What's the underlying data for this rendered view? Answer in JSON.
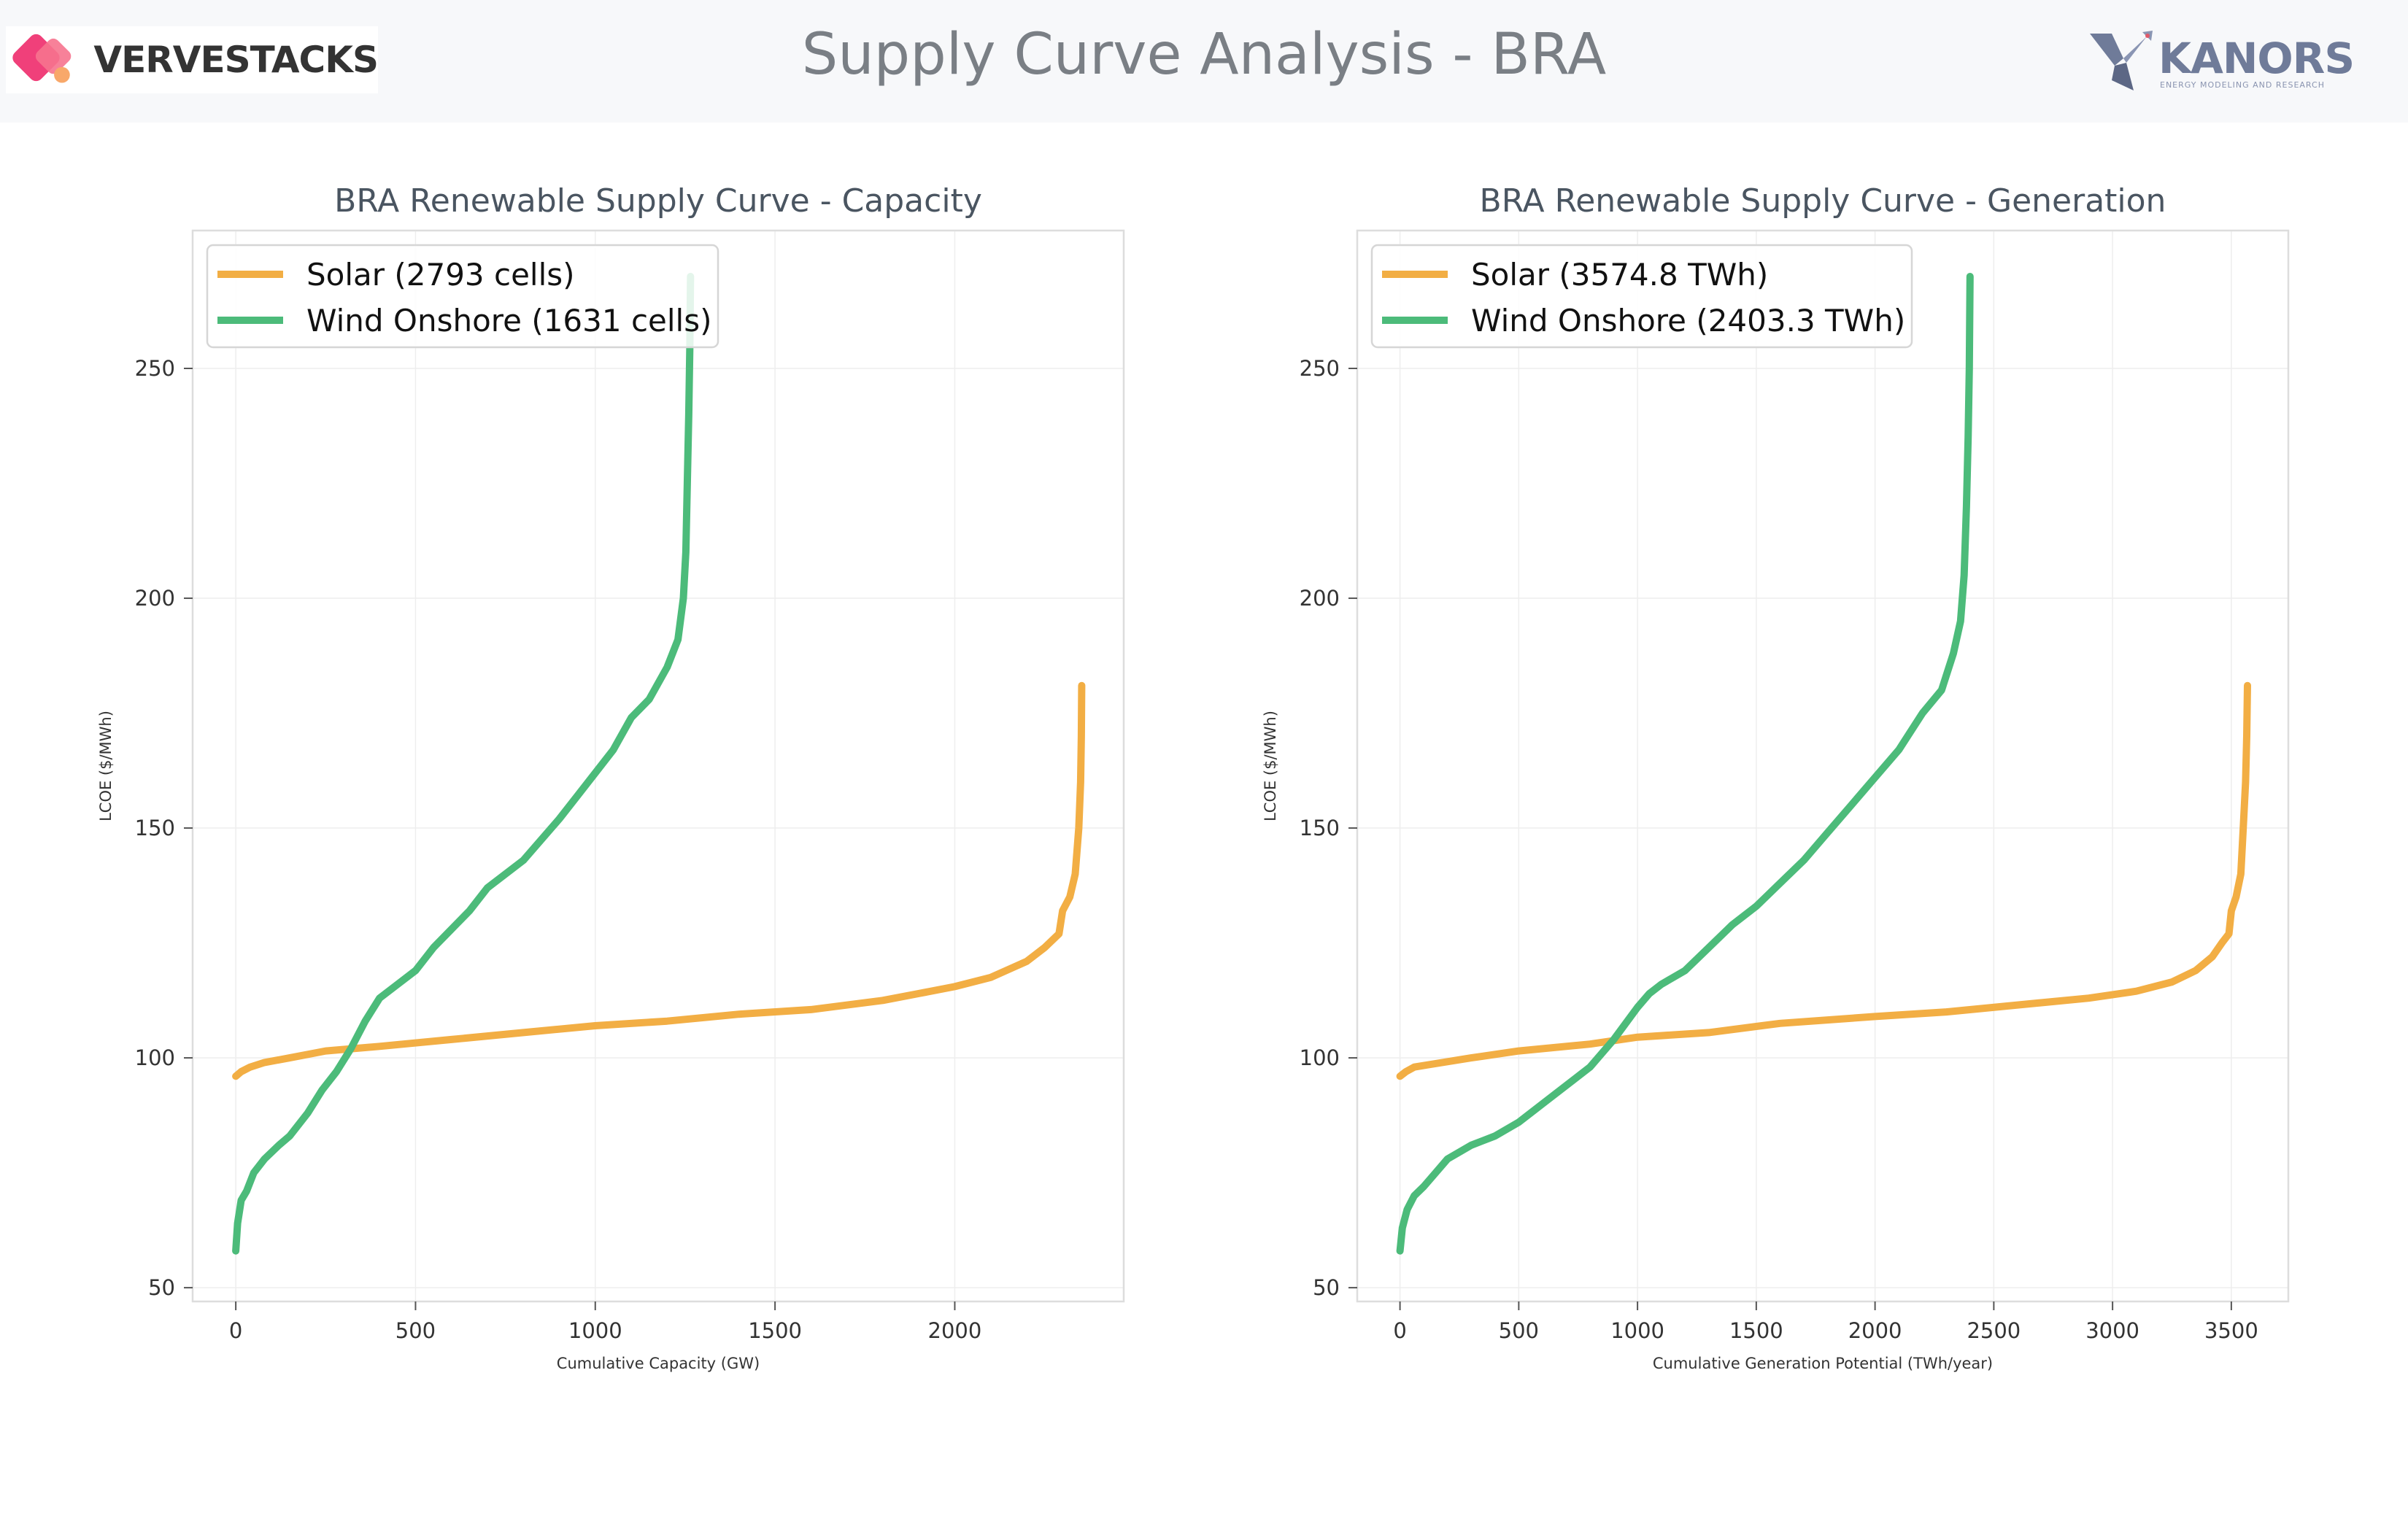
{
  "header": {
    "title": "Supply Curve Analysis - BRA",
    "left_logo_text": "VERVESTACKS",
    "right_logo_text": "KANORS",
    "right_logo_tagline": "ENERGY MODELING AND RESEARCH"
  },
  "colors": {
    "solar": "#f2ae44",
    "wind": "#4cbb7a",
    "axis_frame": "#dddddd",
    "grid": "#eeeeee"
  },
  "chart_data": [
    {
      "type": "line",
      "title": "BRA Renewable Supply Curve - Capacity",
      "xlabel": "Cumulative Capacity (GW)",
      "ylabel": "LCOE ($/MWh)",
      "xlim": [
        -120,
        2470
      ],
      "ylim": [
        47,
        280
      ],
      "xticks": [
        0,
        500,
        1000,
        1500,
        2000
      ],
      "yticks": [
        50,
        100,
        150,
        200,
        250
      ],
      "grid": true,
      "legend": "top-left",
      "series": [
        {
          "name": "Solar (2793 cells)",
          "color_key": "solar",
          "points": [
            [
              0,
              96
            ],
            [
              15,
              97
            ],
            [
              40,
              98
            ],
            [
              80,
              99
            ],
            [
              150,
              100
            ],
            [
              250,
              101.5
            ],
            [
              400,
              102.5
            ],
            [
              600,
              104
            ],
            [
              800,
              105.5
            ],
            [
              1000,
              107
            ],
            [
              1200,
              108
            ],
            [
              1400,
              109.5
            ],
            [
              1600,
              110.5
            ],
            [
              1800,
              112.5
            ],
            [
              1900,
              114
            ],
            [
              2000,
              115.5
            ],
            [
              2100,
              117.5
            ],
            [
              2200,
              121
            ],
            [
              2250,
              124
            ],
            [
              2290,
              127
            ],
            [
              2300,
              132
            ],
            [
              2320,
              135
            ],
            [
              2335,
              140
            ],
            [
              2345,
              150
            ],
            [
              2350,
              160
            ],
            [
              2352,
              170
            ],
            [
              2353,
              181
            ]
          ]
        },
        {
          "name": "Wind Onshore (1631 cells)",
          "color_key": "wind",
          "points": [
            [
              0,
              58
            ],
            [
              5,
              64
            ],
            [
              15,
              69
            ],
            [
              30,
              71
            ],
            [
              50,
              75
            ],
            [
              80,
              78
            ],
            [
              120,
              81
            ],
            [
              150,
              83
            ],
            [
              200,
              88
            ],
            [
              240,
              93
            ],
            [
              280,
              97
            ],
            [
              320,
              102
            ],
            [
              360,
              108
            ],
            [
              400,
              113
            ],
            [
              450,
              116
            ],
            [
              500,
              119
            ],
            [
              550,
              124
            ],
            [
              600,
              128
            ],
            [
              650,
              132
            ],
            [
              700,
              137
            ],
            [
              800,
              143
            ],
            [
              900,
              152
            ],
            [
              950,
              157
            ],
            [
              1000,
              162
            ],
            [
              1050,
              167
            ],
            [
              1100,
              174
            ],
            [
              1150,
              178
            ],
            [
              1200,
              185
            ],
            [
              1230,
              191
            ],
            [
              1245,
              200
            ],
            [
              1252,
              210
            ],
            [
              1256,
              225
            ],
            [
              1260,
              240
            ],
            [
              1263,
              255
            ],
            [
              1265,
              270
            ]
          ]
        }
      ]
    },
    {
      "type": "line",
      "title": "BRA Renewable Supply Curve - Generation",
      "xlabel": "Cumulative Generation Potential (TWh/year)",
      "ylabel": "LCOE ($/MWh)",
      "xlim": [
        -180,
        3740
      ],
      "ylim": [
        47,
        280
      ],
      "xticks": [
        0,
        500,
        1000,
        1500,
        2000,
        2500,
        3000,
        3500
      ],
      "yticks": [
        50,
        100,
        150,
        200,
        250
      ],
      "grid": true,
      "legend": "top-left",
      "series": [
        {
          "name": "Solar (3574.8 TWh)",
          "color_key": "solar",
          "points": [
            [
              0,
              96
            ],
            [
              25,
              97
            ],
            [
              60,
              98
            ],
            [
              120,
              98.5
            ],
            [
              300,
              100
            ],
            [
              500,
              101.5
            ],
            [
              800,
              103
            ],
            [
              1000,
              104.5
            ],
            [
              1300,
              105.5
            ],
            [
              1600,
              107.5
            ],
            [
              2000,
              109
            ],
            [
              2300,
              110
            ],
            [
              2600,
              111.5
            ],
            [
              2900,
              113
            ],
            [
              3100,
              114.5
            ],
            [
              3250,
              116.5
            ],
            [
              3350,
              119
            ],
            [
              3420,
              122
            ],
            [
              3460,
              125
            ],
            [
              3490,
              127
            ],
            [
              3500,
              132
            ],
            [
              3520,
              135
            ],
            [
              3540,
              140
            ],
            [
              3550,
              150
            ],
            [
              3560,
              160
            ],
            [
              3565,
              170
            ],
            [
              3568,
              181
            ]
          ]
        },
        {
          "name": "Wind Onshore (2403.3 TWh)",
          "color_key": "wind",
          "points": [
            [
              0,
              58
            ],
            [
              10,
              63
            ],
            [
              30,
              67
            ],
            [
              60,
              70
            ],
            [
              100,
              72
            ],
            [
              150,
              75
            ],
            [
              200,
              78
            ],
            [
              300,
              81
            ],
            [
              400,
              83
            ],
            [
              500,
              86
            ],
            [
              600,
              90
            ],
            [
              700,
              94
            ],
            [
              800,
              98
            ],
            [
              900,
              104
            ],
            [
              1000,
              111
            ],
            [
              1050,
              114
            ],
            [
              1100,
              116
            ],
            [
              1200,
              119
            ],
            [
              1300,
              124
            ],
            [
              1400,
              129
            ],
            [
              1500,
              133
            ],
            [
              1600,
              138
            ],
            [
              1700,
              143
            ],
            [
              1800,
              149
            ],
            [
              1900,
              155
            ],
            [
              2000,
              161
            ],
            [
              2100,
              167
            ],
            [
              2200,
              175
            ],
            [
              2280,
              180
            ],
            [
              2330,
              188
            ],
            [
              2360,
              195
            ],
            [
              2375,
              205
            ],
            [
              2385,
              220
            ],
            [
              2392,
              235
            ],
            [
              2397,
              250
            ],
            [
              2400,
              270
            ]
          ]
        }
      ]
    }
  ]
}
